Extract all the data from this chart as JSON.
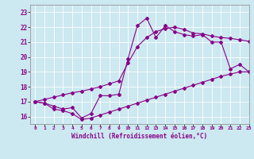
{
  "xlabel": "Windchill (Refroidissement éolien,°C)",
  "background_color": "#cce8f0",
  "line_color": "#880088",
  "xlim": [
    -0.5,
    23
  ],
  "ylim": [
    15.5,
    23.5
  ],
  "xticks": [
    0,
    1,
    2,
    3,
    4,
    5,
    6,
    7,
    8,
    9,
    10,
    11,
    12,
    13,
    14,
    15,
    16,
    17,
    18,
    19,
    20,
    21,
    22,
    23
  ],
  "yticks": [
    16,
    17,
    18,
    19,
    20,
    21,
    22,
    23
  ],
  "x": [
    0,
    1,
    2,
    3,
    4,
    5,
    6,
    7,
    8,
    9,
    10,
    11,
    12,
    13,
    14,
    15,
    16,
    17,
    18,
    19,
    20,
    21,
    22,
    23
  ],
  "y_actual": [
    17.0,
    16.9,
    16.7,
    16.5,
    16.6,
    15.9,
    16.2,
    17.4,
    17.4,
    17.5,
    19.9,
    22.1,
    22.6,
    21.3,
    22.1,
    21.7,
    21.5,
    21.4,
    21.5,
    21.0,
    21.0,
    19.2,
    19.5,
    19.0
  ],
  "y_low": [
    17.0,
    16.9,
    16.5,
    16.4,
    16.2,
    15.8,
    15.9,
    16.1,
    16.3,
    16.5,
    16.7,
    16.9,
    17.1,
    17.3,
    17.5,
    17.7,
    17.9,
    18.1,
    18.3,
    18.5,
    18.7,
    18.85,
    19.0,
    19.0
  ],
  "y_high": [
    17.0,
    17.15,
    17.3,
    17.45,
    17.6,
    17.7,
    17.85,
    18.0,
    18.2,
    18.4,
    19.6,
    20.7,
    21.3,
    21.7,
    21.9,
    22.0,
    21.85,
    21.6,
    21.55,
    21.4,
    21.3,
    21.25,
    21.15,
    21.05
  ]
}
